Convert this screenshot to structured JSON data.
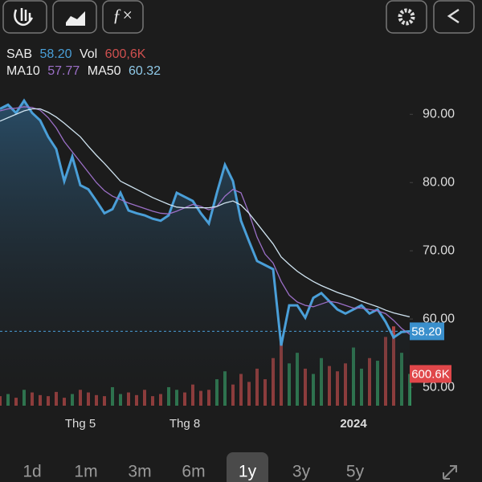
{
  "chart_data": {
    "type": "line",
    "legend": {
      "symbol": "SAB",
      "price": "58.20",
      "vol_name": "Vol",
      "vol": "600,6K",
      "ma10_name": "MA10",
      "ma10": "57.77",
      "ma50_name": "MA50",
      "ma50": "60.32"
    },
    "price_tag": "58.20",
    "volume_tag": "600.6K",
    "categories": [
      null,
      null,
      null,
      null,
      null,
      null,
      null,
      null,
      null,
      null,
      "Thg 5",
      null,
      null,
      null,
      null,
      null,
      null,
      null,
      null,
      null,
      null,
      null,
      null,
      "Thg 8",
      null,
      null,
      null,
      null,
      null,
      null,
      null,
      null,
      null,
      null,
      null,
      null,
      null,
      null,
      null,
      null,
      null,
      null,
      null,
      null,
      "2024",
      null,
      null,
      null,
      null,
      null,
      null,
      null
    ],
    "series": [
      {
        "name": "SAB",
        "color": "#4a9fd8",
        "values": [
          90.8,
          91.4,
          90.2,
          92,
          90.2,
          89.1,
          86.7,
          84.9,
          80.2,
          83.8,
          79.6,
          79,
          77.3,
          75.5,
          76.1,
          78.5,
          75.9,
          75.5,
          75.2,
          74.7,
          74.4,
          75.2,
          78.5,
          77.9,
          77.3,
          75.5,
          74,
          78.5,
          82.6,
          80.2,
          74.4,
          71.4,
          68.5,
          67.9,
          67.3,
          56.1,
          62,
          62,
          60.2,
          63.1,
          63.8,
          62.6,
          61.4,
          60.8,
          61.4,
          62,
          60.8,
          61.4,
          59.6,
          57.3,
          58.1,
          58.2
        ]
      },
      {
        "name": "MA10",
        "color": "#9b6fc7",
        "values": [
          90.5,
          90.8,
          90.9,
          91.1,
          91,
          90.6,
          89.5,
          88,
          86,
          84.5,
          83,
          81.5,
          80,
          78.8,
          78,
          77.5,
          77,
          76.6,
          76.2,
          75.8,
          75.5,
          75.4,
          75.8,
          76.3,
          76.8,
          76.5,
          76,
          76.5,
          78,
          79,
          78.5,
          75.5,
          72,
          69.5,
          68.2,
          65.5,
          63.5,
          62.5,
          62,
          61.8,
          62.2,
          62.6,
          62.4,
          62,
          61.6,
          61.6,
          61.4,
          61.2,
          60.8,
          59.8,
          58.6,
          57.77
        ]
      },
      {
        "name": "MA50",
        "color": "#cfe3f0",
        "values": [
          89,
          89.5,
          90,
          90.5,
          90.8,
          90.8,
          90.3,
          89.6,
          88.7,
          87.7,
          86.7,
          85.3,
          84,
          82.8,
          81.5,
          80.2,
          79.6,
          79,
          78.4,
          77.8,
          77.3,
          76.8,
          76.4,
          76.3,
          76.3,
          76.3,
          76.3,
          76.5,
          77,
          77.3,
          76.7,
          75.5,
          74,
          72.5,
          71,
          69.1,
          68,
          67,
          66.2,
          65.5,
          64.9,
          64.4,
          63.9,
          63.5,
          63.1,
          62.6,
          62.2,
          61.8,
          61.3,
          60.9,
          60.6,
          60.32
        ]
      },
      {
        "name": "Vol",
        "color": "#d0504f",
        "up_color": "#3aa66b",
        "axis": "y2",
        "values": [
          180,
          220,
          150,
          300,
          250,
          200,
          180,
          260,
          150,
          220,
          300,
          250,
          200,
          180,
          350,
          220,
          250,
          200,
          300,
          180,
          220,
          350,
          300,
          250,
          400,
          280,
          300,
          500,
          650,
          400,
          600,
          450,
          700,
          500,
          900,
          1200,
          800,
          1000,
          700,
          600,
          900,
          750,
          650,
          800,
          1100,
          700,
          900,
          850,
          1300,
          1500,
          1000,
          600.6
        ]
      }
    ],
    "ylim": [
      47.3,
      93.8
    ],
    "yticks": [
      {
        "value": 50,
        "label": "50.00"
      },
      {
        "value": 60,
        "label": "60.00"
      },
      {
        "value": 70,
        "label": "70.00"
      },
      {
        "value": 80,
        "label": "80.00"
      },
      {
        "value": 90,
        "label": "90.00"
      }
    ],
    "y2lim": [
      0,
      6000
    ],
    "ranges": [
      "1d",
      "1m",
      "3m",
      "6m",
      "1y",
      "3y",
      "5y"
    ],
    "selected_range": "1y"
  }
}
